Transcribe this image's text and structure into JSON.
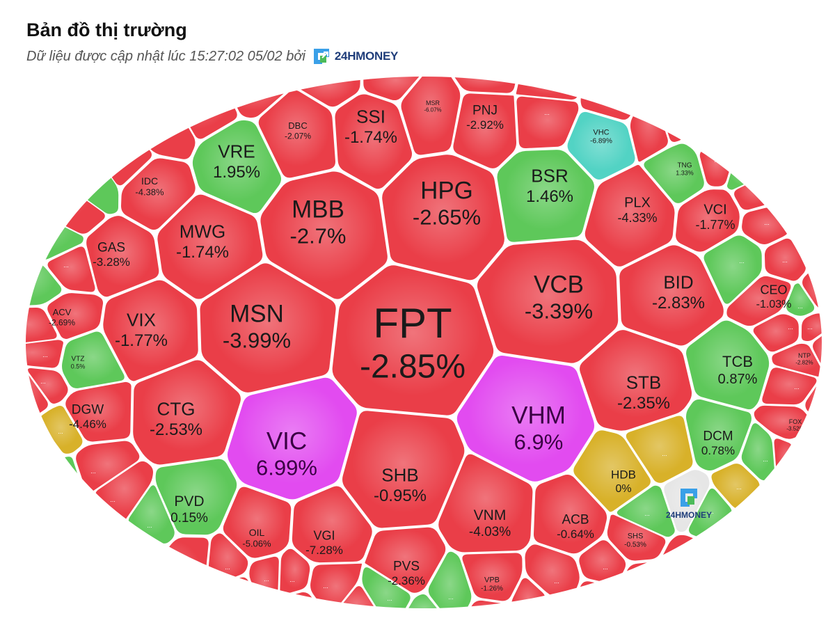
{
  "header": {
    "title": "Bản đồ thị trường",
    "subtitle": "Dữ liệu được cập nhật lúc 15:27:02 05/02 bởi",
    "brand": "24HMONEY",
    "brand_icon": "24hmoney-logo-icon"
  },
  "colors": {
    "up": "#5ec85a",
    "down": "#ea3e48",
    "ceiling": "#e24bf0",
    "floor": "#52d3c4",
    "ref": "#d8b129",
    "logo_cell": "#e6e6e6"
  },
  "tiles": [
    {
      "sym": "FPT",
      "pct": "-2.85%",
      "st": "down"
    },
    {
      "sym": "HPG",
      "pct": "-2.65%",
      "st": "down"
    },
    {
      "sym": "MBB",
      "pct": "-2.7%",
      "st": "down"
    },
    {
      "sym": "MSN",
      "pct": "-3.99%",
      "st": "down"
    },
    {
      "sym": "VIC",
      "pct": "6.99%",
      "st": "ceiling"
    },
    {
      "sym": "VHM",
      "pct": "6.9%",
      "st": "ceiling"
    },
    {
      "sym": "VCB",
      "pct": "-3.39%",
      "st": "down"
    },
    {
      "sym": "SHB",
      "pct": "-0.95%",
      "st": "down"
    },
    {
      "sym": "STB",
      "pct": "-2.35%",
      "st": "down"
    },
    {
      "sym": "BID",
      "pct": "-2.83%",
      "st": "down"
    },
    {
      "sym": "CTG",
      "pct": "-2.53%",
      "st": "down"
    },
    {
      "sym": "VIX",
      "pct": "-1.77%",
      "st": "down"
    },
    {
      "sym": "MWG",
      "pct": "-1.74%",
      "st": "down"
    },
    {
      "sym": "SSI",
      "pct": "-1.74%",
      "st": "down"
    },
    {
      "sym": "VRE",
      "pct": "1.95%",
      "st": "up"
    },
    {
      "sym": "BSR",
      "pct": "1.46%",
      "st": "up"
    },
    {
      "sym": "PLX",
      "pct": "-4.33%",
      "st": "down"
    },
    {
      "sym": "VCI",
      "pct": "-1.77%",
      "st": "down"
    },
    {
      "sym": "CEO",
      "pct": "-1.03%",
      "st": "down"
    },
    {
      "sym": "TCB",
      "pct": "0.87%",
      "st": "up"
    },
    {
      "sym": "DCM",
      "pct": "0.78%",
      "st": "up"
    },
    {
      "sym": "HDB",
      "pct": "0%",
      "st": "ref"
    },
    {
      "sym": "VNM",
      "pct": "-4.03%",
      "st": "down"
    },
    {
      "sym": "ACB",
      "pct": "-0.64%",
      "st": "down"
    },
    {
      "sym": "PVS",
      "pct": "-2.36%",
      "st": "down"
    },
    {
      "sym": "VGI",
      "pct": "-7.28%",
      "st": "down"
    },
    {
      "sym": "OIL",
      "pct": "-5.06%",
      "st": "down"
    },
    {
      "sym": "PVD",
      "pct": "0.15%",
      "st": "up"
    },
    {
      "sym": "DGW",
      "pct": "-4.46%",
      "st": "down"
    },
    {
      "sym": "GAS",
      "pct": "-3.28%",
      "st": "down"
    },
    {
      "sym": "IDC",
      "pct": "-4.38%",
      "st": "down"
    },
    {
      "sym": "ACV",
      "pct": "-2.69%",
      "st": "down"
    },
    {
      "sym": "VTZ",
      "pct": "0.5%",
      "st": "up"
    },
    {
      "sym": "PNJ",
      "pct": "-2.92%",
      "st": "down"
    },
    {
      "sym": "DBC",
      "pct": "-2.07%",
      "st": "down"
    },
    {
      "sym": "MSR",
      "pct": "-6.07%",
      "st": "down"
    },
    {
      "sym": "VHC",
      "pct": "-6.89%",
      "st": "floor"
    },
    {
      "sym": "TNG",
      "pct": "1.33%",
      "st": "up"
    },
    {
      "sym": "NTP",
      "pct": "-2.82%",
      "st": "down"
    },
    {
      "sym": "FOX",
      "pct": "-3.52%",
      "st": "down"
    },
    {
      "sym": "SHS",
      "pct": "-0.53%",
      "st": "down"
    },
    {
      "sym": "VPB",
      "pct": "-1.26%",
      "st": "down"
    }
  ],
  "small_tiles": [
    {
      "st": "down"
    },
    {
      "st": "down"
    },
    {
      "st": "down"
    },
    {
      "st": "up"
    },
    {
      "st": "down"
    },
    {
      "st": "down"
    },
    {
      "st": "up"
    },
    {
      "st": "down"
    },
    {
      "st": "up"
    },
    {
      "st": "down"
    },
    {
      "st": "down"
    },
    {
      "st": "down"
    },
    {
      "st": "down"
    },
    {
      "st": "down"
    },
    {
      "st": "up"
    },
    {
      "st": "ref"
    },
    {
      "st": "up"
    },
    {
      "st": "ref"
    },
    {
      "st": "up"
    },
    {
      "st": "down"
    },
    {
      "st": "down"
    },
    {
      "st": "down"
    },
    {
      "st": "up"
    },
    {
      "st": "up"
    },
    {
      "st": "down"
    },
    {
      "st": "down"
    },
    {
      "st": "down"
    },
    {
      "st": "down"
    },
    {
      "st": "up"
    },
    {
      "st": "down"
    },
    {
      "st": "down"
    },
    {
      "st": "ref"
    },
    {
      "st": "down"
    },
    {
      "st": "down"
    },
    {
      "st": "down"
    }
  ],
  "small_label": "...",
  "watermark": "24HMONEY"
}
